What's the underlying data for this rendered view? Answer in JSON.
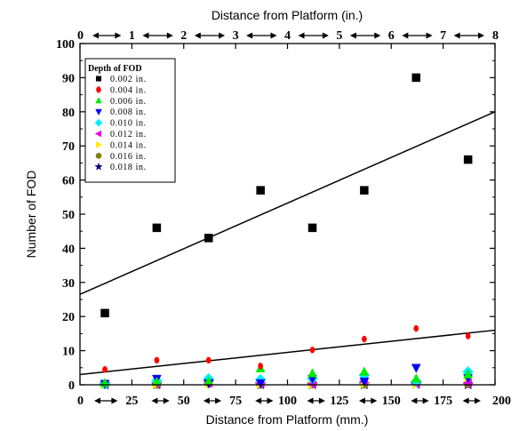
{
  "chart_data": {
    "type": "scatter",
    "title": "",
    "xlabel": "Distance from Platform (mm.)",
    "ylabel": "Number of FOD",
    "x2label": "Distance from Platform (in.)",
    "xlim": [
      0,
      200
    ],
    "ylim": [
      0,
      100
    ],
    "x2lim": [
      0,
      8
    ],
    "xticks": [
      "0",
      "25",
      "50",
      "75",
      "100",
      "125",
      "150",
      "175",
      "200"
    ],
    "x2ticks": [
      "0",
      "1",
      "2",
      "3",
      "4",
      "5",
      "6",
      "7",
      "8"
    ],
    "yticks": [
      "0",
      "10",
      "20",
      "30",
      "40",
      "50",
      "60",
      "70",
      "80",
      "90",
      "100"
    ],
    "legend_title": "Depth of FOD",
    "legend_position": "top-left",
    "grid": false,
    "series": [
      {
        "name": "0.002 in.",
        "marker": "square",
        "color": "#000000",
        "x": [
          12,
          37,
          62,
          87,
          112,
          137,
          162,
          187
        ],
        "y": [
          21,
          46,
          43,
          57,
          46,
          57,
          90,
          66
        ]
      },
      {
        "name": "0.004 in.",
        "marker": "circle",
        "color": "#ff0000",
        "x": [
          12,
          37,
          62,
          87,
          112,
          137,
          162,
          187
        ],
        "y": [
          4.5,
          7.2,
          7.2,
          5.5,
          10.2,
          13.4,
          16.5,
          14.3
        ]
      },
      {
        "name": "0.006 in.",
        "marker": "triangle-up",
        "color": "#00ee00",
        "x": [
          12,
          37,
          62,
          87,
          112,
          137,
          162,
          187
        ],
        "y": [
          0.5,
          0.8,
          1,
          4.8,
          3.3,
          3.8,
          1.8,
          3
        ]
      },
      {
        "name": "0.008 in.",
        "marker": "triangle-down",
        "color": "#0000ff",
        "x": [
          12,
          37,
          62,
          87,
          112,
          137,
          162,
          187
        ],
        "y": [
          0.3,
          1.8,
          0.5,
          0.5,
          1.8,
          1,
          5,
          2
        ]
      },
      {
        "name": "0.010 in.",
        "marker": "diamond",
        "color": "#00eeff",
        "x": [
          12,
          37,
          62,
          87,
          112,
          137,
          162,
          187
        ],
        "y": [
          0.2,
          1.2,
          1.8,
          1.5,
          1.8,
          2.8,
          1,
          3.8
        ]
      },
      {
        "name": "0.012 in.",
        "marker": "triangle-left",
        "color": "#ee00ee",
        "x": [
          12,
          37,
          62,
          87,
          112,
          137,
          162,
          187
        ],
        "y": [
          0.2,
          0.3,
          0.5,
          0.3,
          0.2,
          1,
          0.3,
          0.5
        ]
      },
      {
        "name": "0.014 in.",
        "marker": "triangle-right",
        "color": "#ffee00",
        "x": [
          12,
          37,
          62,
          87,
          112,
          137,
          162,
          187
        ],
        "y": [
          0.1,
          0.2,
          0.3,
          0.2,
          0.2,
          0.3,
          0.2,
          1.2
        ]
      },
      {
        "name": "0.016 in.",
        "marker": "hexagon",
        "color": "#808000",
        "x": [
          12,
          37,
          62,
          87,
          112,
          137,
          162,
          187
        ],
        "y": [
          0.1,
          0.1,
          0.3,
          0.1,
          0.2,
          0.2,
          0.8,
          0.3
        ]
      },
      {
        "name": "0.018 in.",
        "marker": "star",
        "color": "#000080",
        "x": [
          12,
          37,
          62,
          87,
          112,
          137,
          162,
          187
        ],
        "y": [
          0.1,
          0.1,
          0.8,
          0.1,
          0.1,
          0.1,
          0.2,
          0.1
        ]
      }
    ],
    "fit_lines": [
      {
        "series": "0.002 in.",
        "x": [
          0,
          200
        ],
        "y": [
          26.5,
          80
        ]
      },
      {
        "series": "0.004 in.",
        "x": [
          0,
          200
        ],
        "y": [
          3,
          16
        ]
      }
    ],
    "arrow_groups_bottom": [
      [
        0,
        25
      ],
      [
        25,
        50
      ],
      [
        50,
        75
      ],
      [
        75,
        100
      ],
      [
        100,
        125
      ],
      [
        125,
        150
      ],
      [
        150,
        175
      ],
      [
        175,
        200
      ]
    ],
    "arrow_groups_top": [
      [
        0,
        1
      ],
      [
        1,
        2
      ],
      [
        2,
        3
      ],
      [
        3,
        4
      ],
      [
        4,
        5
      ],
      [
        5,
        6
      ],
      [
        6,
        7
      ],
      [
        7,
        8
      ]
    ]
  }
}
